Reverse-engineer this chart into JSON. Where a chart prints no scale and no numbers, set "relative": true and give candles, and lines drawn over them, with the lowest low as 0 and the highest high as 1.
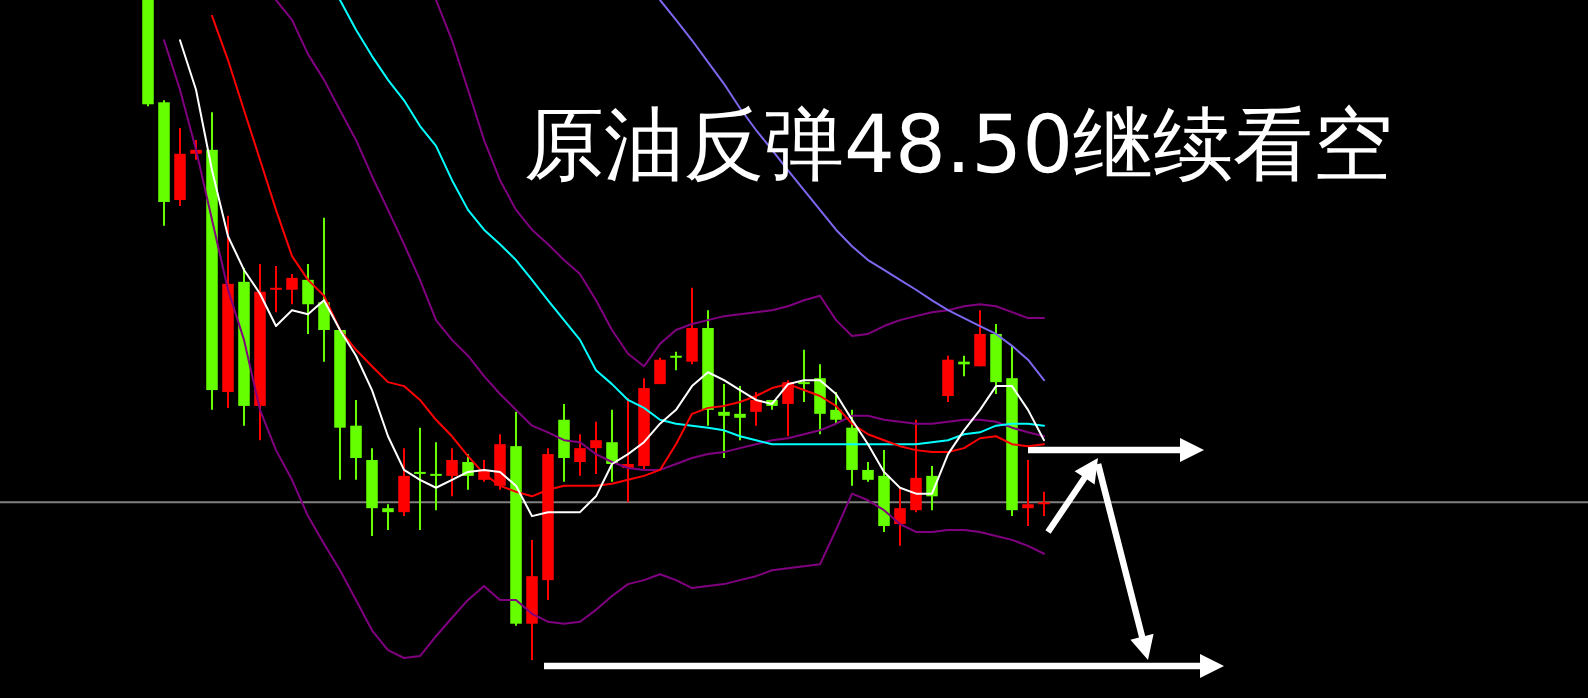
{
  "chart_data": {
    "type": "candlestick",
    "title": "原油反弹48.50继续看空",
    "relative": true,
    "categories": [
      null,
      null,
      null,
      null,
      null,
      null,
      null,
      null,
      null,
      null,
      null,
      null,
      null,
      null,
      null,
      null,
      null,
      null,
      null,
      null,
      null,
      null,
      null,
      null,
      null,
      null,
      null,
      null,
      null,
      null,
      null,
      null,
      null,
      null,
      null,
      null,
      null,
      null,
      null,
      null,
      null,
      null,
      null,
      null,
      null,
      null,
      null,
      null,
      null,
      null,
      null,
      null,
      null,
      null,
      null,
      null,
      null
    ],
    "ref_lines": [
      {
        "axis": "y",
        "value": 0.239,
        "color": "#808080"
      }
    ],
    "series": [
      {
        "type": "line",
        "color": "#800080",
        "values": [
          null,
          0.939,
          0.864,
          0.773,
          0.667,
          0.561,
          0.485,
          0.379,
          0.318,
          0.273,
          0.218,
          0.176,
          0.136,
          0.091,
          0.045,
          0.015,
          0.003,
          0.006,
          0.036,
          0.064,
          0.091,
          0.112,
          0.091,
          0.091,
          0.07,
          0.058,
          0.055,
          0.058,
          0.076,
          0.097,
          0.115,
          0.121,
          0.13,
          0.121,
          0.109,
          0.112,
          0.115,
          0.121,
          0.127,
          0.136,
          0.139,
          0.142,
          0.145,
          0.197,
          0.252,
          0.242,
          0.227,
          0.206,
          0.194,
          0.194,
          0.197,
          0.197,
          0.194,
          0.188,
          0.182,
          0.173,
          0.161
        ]
      },
      {
        "type": "line",
        "color": "#800080",
        "values": [
          null,
          null,
          null,
          null,
          null,
          null,
          null,
          null,
          1.0,
          0.97,
          0.918,
          0.879,
          0.833,
          0.788,
          0.733,
          0.682,
          0.63,
          0.576,
          0.515,
          0.485,
          0.461,
          0.43,
          0.403,
          0.379,
          0.355,
          0.345,
          0.333,
          0.33,
          0.312,
          0.3,
          0.291,
          0.288,
          0.288,
          0.297,
          0.306,
          0.312,
          0.315,
          0.321,
          0.327,
          0.333,
          0.336,
          0.342,
          0.348,
          0.358,
          0.37,
          0.37,
          0.364,
          0.361,
          0.358,
          0.358,
          0.361,
          0.364,
          0.364,
          0.361,
          0.352,
          0.345,
          0.339
        ]
      },
      {
        "type": "line",
        "color": "#800080",
        "values": [
          null,
          null,
          null,
          null,
          null,
          null,
          null,
          null,
          null,
          null,
          null,
          null,
          null,
          null,
          null,
          null,
          null,
          null,
          1.0,
          0.939,
          0.864,
          0.788,
          0.727,
          0.682,
          0.652,
          0.63,
          0.606,
          0.585,
          0.545,
          0.5,
          0.464,
          0.445,
          0.479,
          0.5,
          0.509,
          0.515,
          0.521,
          0.524,
          0.527,
          0.53,
          0.536,
          0.545,
          0.552,
          0.515,
          0.491,
          0.494,
          0.506,
          0.515,
          0.521,
          0.527,
          0.53,
          0.536,
          0.539,
          0.536,
          0.527,
          0.518,
          0.518
        ]
      },
      {
        "type": "line",
        "color": "#7b68ee",
        "values": [
          null,
          null,
          null,
          null,
          null,
          null,
          null,
          null,
          null,
          null,
          null,
          null,
          null,
          null,
          null,
          null,
          null,
          null,
          null,
          null,
          null,
          null,
          null,
          null,
          null,
          null,
          null,
          null,
          null,
          null,
          null,
          null,
          1.0,
          0.97,
          0.939,
          0.906,
          0.873,
          0.836,
          0.803,
          0.773,
          0.742,
          0.712,
          0.682,
          0.652,
          0.627,
          0.606,
          0.591,
          0.576,
          0.561,
          0.545,
          0.53,
          0.518,
          0.506,
          0.494,
          0.476,
          0.455,
          0.424
        ]
      },
      {
        "type": "line",
        "color": "#00ffff",
        "values": [
          null,
          null,
          null,
          null,
          null,
          null,
          null,
          null,
          null,
          null,
          null,
          null,
          1.0,
          0.955,
          0.915,
          0.879,
          0.848,
          0.809,
          0.779,
          0.727,
          0.682,
          0.652,
          0.63,
          0.606,
          0.576,
          0.545,
          0.515,
          0.485,
          0.439,
          0.418,
          0.394,
          0.382,
          0.364,
          0.358,
          0.355,
          0.352,
          0.348,
          0.339,
          0.333,
          0.327,
          0.327,
          0.327,
          0.327,
          0.327,
          0.327,
          0.327,
          0.327,
          0.327,
          0.327,
          0.33,
          0.333,
          0.342,
          0.345,
          0.355,
          0.358,
          0.358,
          0.355
        ]
      },
      {
        "type": "line",
        "color": "#ff0000",
        "values": [
          null,
          null,
          null,
          null,
          0.976,
          0.909,
          0.833,
          0.758,
          0.682,
          0.612,
          0.576,
          0.552,
          0.5,
          0.47,
          0.445,
          0.421,
          0.415,
          0.394,
          0.364,
          0.339,
          0.309,
          0.282,
          0.264,
          0.255,
          0.248,
          0.258,
          0.264,
          0.264,
          0.264,
          0.267,
          0.273,
          0.279,
          0.288,
          0.327,
          0.373,
          0.382,
          0.385,
          0.391,
          0.4,
          0.412,
          0.418,
          0.409,
          0.4,
          0.385,
          0.358,
          0.342,
          0.333,
          0.324,
          0.318,
          0.315,
          0.315,
          0.321,
          0.336,
          0.339,
          0.327,
          0.324,
          0.327
        ]
      },
      {
        "type": "line",
        "color": "#ffffff",
        "values": [
          null,
          null,
          0.939,
          0.864,
          0.742,
          0.642,
          0.591,
          0.555,
          0.506,
          0.53,
          0.524,
          0.545,
          0.5,
          0.461,
          0.409,
          0.339,
          0.288,
          0.273,
          0.261,
          0.273,
          0.285,
          0.288,
          0.285,
          0.264,
          0.218,
          0.224,
          0.224,
          0.224,
          0.248,
          0.297,
          0.312,
          0.33,
          0.358,
          0.379,
          0.415,
          0.436,
          0.424,
          0.409,
          0.394,
          0.388,
          0.418,
          0.424,
          0.424,
          0.403,
          0.364,
          0.327,
          0.285,
          0.261,
          0.252,
          0.252,
          0.312,
          0.348,
          0.379,
          0.415,
          0.415,
          0.379,
          0.333
        ]
      },
      {
        "type": "candlestick",
        "colors": [
          "#66ff00",
          "#66ff00",
          "#ff0000",
          "#ff0000",
          "#66ff00",
          "#ff0000",
          "#66ff00",
          "#ff0000",
          "#ff0000",
          "#ff0000",
          "#66ff00",
          "#66ff00",
          "#66ff00",
          "#66ff00",
          "#66ff00",
          "#66ff00",
          "#ff0000",
          "#66ff00",
          "#66ff00",
          "#ff0000",
          "#66ff00",
          "#ff0000",
          "#ff0000",
          "#66ff00",
          "#ff0000",
          "#ff0000",
          "#66ff00",
          "#ff0000",
          "#ff0000",
          "#66ff00",
          "#ff0000",
          "#ff0000",
          "#ff0000",
          "#66ff00",
          "#ff0000",
          "#66ff00",
          "#66ff00",
          "#66ff00",
          "#ff0000",
          "#66ff00",
          "#ff0000",
          "#66ff00",
          "#66ff00",
          "#66ff00",
          "#66ff00",
          "#66ff00",
          "#66ff00",
          "#ff0000",
          "#ff0000",
          "#66ff00",
          "#ff0000",
          "#66ff00",
          "#ff0000",
          "#66ff00",
          "#66ff00",
          "#ff0000",
          "#ff0000"
        ],
        "ohlc": [
          [
            1.0,
            1.0,
            0.839,
            0.842
          ],
          [
            0.845,
            0.848,
            0.658,
            0.694
          ],
          [
            0.697,
            0.806,
            0.688,
            0.767
          ],
          [
            0.767,
            0.788,
            0.758,
            0.773
          ],
          [
            0.773,
            0.83,
            0.379,
            0.409
          ],
          [
            0.406,
            0.673,
            0.382,
            0.57
          ],
          [
            0.573,
            0.594,
            0.355,
            0.385
          ],
          [
            0.385,
            0.6,
            0.333,
            0.558
          ],
          [
            0.561,
            0.597,
            0.527,
            0.564
          ],
          [
            0.561,
            0.585,
            0.539,
            0.579
          ],
          [
            0.576,
            0.6,
            0.494,
            0.539
          ],
          [
            0.542,
            0.67,
            0.452,
            0.5
          ],
          [
            0.5,
            0.5,
            0.273,
            0.352
          ],
          [
            0.355,
            0.394,
            0.273,
            0.306
          ],
          [
            0.303,
            0.321,
            0.188,
            0.23
          ],
          [
            0.23,
            0.236,
            0.197,
            0.224
          ],
          [
            0.224,
            0.321,
            0.218,
            0.279
          ],
          [
            0.285,
            0.352,
            0.197,
            0.282
          ],
          [
            0.282,
            0.33,
            0.227,
            0.279
          ],
          [
            0.279,
            0.321,
            0.248,
            0.303
          ],
          [
            0.3,
            0.312,
            0.258,
            0.279
          ],
          [
            0.273,
            0.303,
            0.27,
            0.288
          ],
          [
            0.264,
            0.342,
            0.258,
            0.327
          ],
          [
            0.324,
            0.376,
            0.052,
            0.055
          ],
          [
            0.055,
            0.182,
            0.0,
            0.127
          ],
          [
            0.121,
            0.321,
            0.091,
            0.312
          ],
          [
            0.364,
            0.388,
            0.27,
            0.306
          ],
          [
            0.3,
            0.342,
            0.279,
            0.321
          ],
          [
            0.321,
            0.361,
            0.282,
            0.333
          ],
          [
            0.33,
            0.379,
            0.27,
            0.297
          ],
          [
            0.291,
            0.397,
            0.239,
            0.297
          ],
          [
            0.294,
            0.427,
            0.288,
            0.412
          ],
          [
            0.418,
            0.458,
            0.418,
            0.455
          ],
          [
            0.461,
            0.467,
            0.439,
            0.458
          ],
          [
            0.452,
            0.564,
            0.448,
            0.503
          ],
          [
            0.503,
            0.53,
            0.355,
            0.379
          ],
          [
            0.376,
            0.418,
            0.306,
            0.37
          ],
          [
            0.373,
            0.415,
            0.333,
            0.367
          ],
          [
            0.376,
            0.406,
            0.355,
            0.394
          ],
          [
            0.394,
            0.394,
            0.379,
            0.385
          ],
          [
            0.388,
            0.424,
            0.339,
            0.421
          ],
          [
            0.421,
            0.47,
            0.391,
            0.418
          ],
          [
            0.427,
            0.448,
            0.342,
            0.373
          ],
          [
            0.379,
            0.406,
            0.358,
            0.364
          ],
          [
            0.352,
            0.379,
            0.264,
            0.288
          ],
          [
            0.288,
            0.3,
            0.27,
            0.273
          ],
          [
            0.279,
            0.318,
            0.194,
            0.203
          ],
          [
            0.206,
            0.261,
            0.173,
            0.23
          ],
          [
            0.227,
            0.364,
            0.224,
            0.276
          ],
          [
            0.279,
            0.294,
            0.227,
            0.248
          ],
          [
            0.4,
            0.461,
            0.391,
            0.455
          ],
          [
            0.452,
            0.461,
            0.43,
            0.448
          ],
          [
            0.445,
            0.53,
            0.445,
            0.494
          ],
          [
            0.494,
            0.509,
            0.403,
            0.421
          ],
          [
            0.427,
            0.476,
            0.218,
            0.227
          ],
          [
            0.23,
            0.303,
            0.203,
            0.236
          ],
          [
            0.236,
            0.255,
            0.218,
            0.239
          ]
        ]
      }
    ]
  }
}
